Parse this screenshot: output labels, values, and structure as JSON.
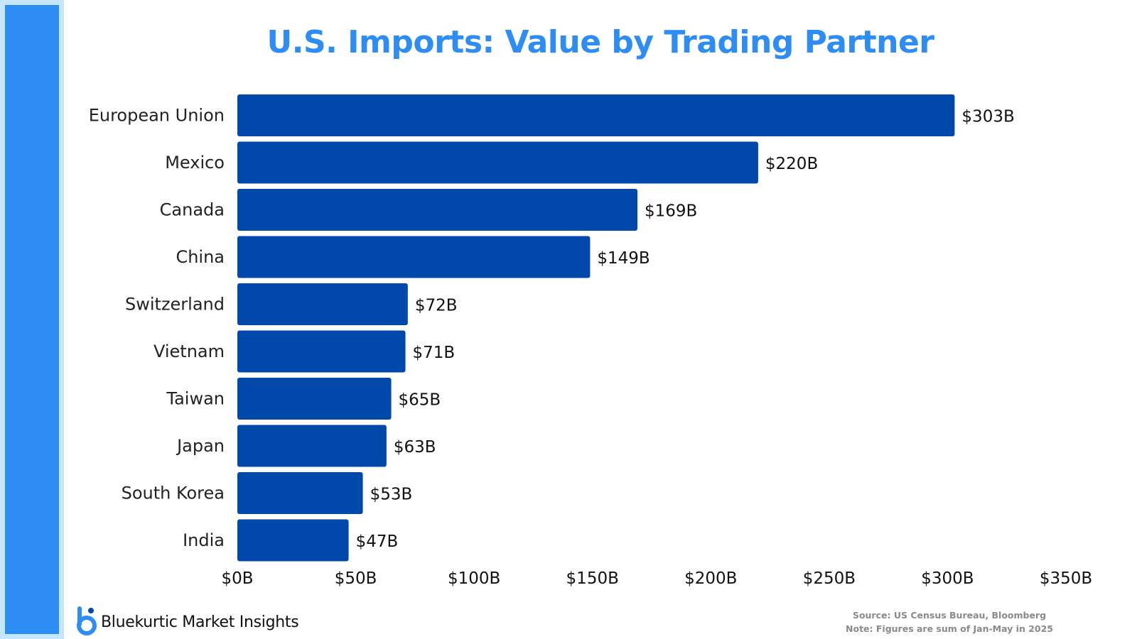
{
  "page": {
    "title": "U.S. Imports: Value by Trading Partner",
    "brand_name": "Bluekurtic Market Insights",
    "source_note": "Source: US Census Bureau, Bloomberg",
    "figures_note": "Note: Figures are sum of Jan-May in 2025",
    "logo_icon": "bluekurtic-logo-icon"
  },
  "colors": {
    "bar": "#0049ab",
    "title": "#2e8df4",
    "side_band": "#2e8df4",
    "side_band_outline": "#c5e6fb"
  },
  "chart_data": {
    "type": "bar",
    "orientation": "horizontal",
    "title": "U.S. Imports: Value by Trading Partner",
    "xlabel": "",
    "ylabel": "",
    "categories": [
      "European Union",
      "Mexico",
      "Canada",
      "China",
      "Switzerland",
      "Vietnam",
      "Taiwan",
      "Japan",
      "South Korea",
      "India"
    ],
    "values": [
      303,
      220,
      169,
      149,
      72,
      71,
      65,
      63,
      53,
      47
    ],
    "value_labels": [
      "$303B",
      "$220B",
      "$169B",
      "$149B",
      "$72B",
      "$71B",
      "$65B",
      "$63B",
      "$53B",
      "$47B"
    ],
    "xlim": [
      0,
      350
    ],
    "xticks": [
      0,
      50,
      100,
      150,
      200,
      250,
      300,
      350
    ],
    "xtick_labels": [
      "$0B",
      "$50B",
      "$100B",
      "$150B",
      "$200B",
      "$250B",
      "$300B",
      "$350B"
    ],
    "unit": "B",
    "grid": false,
    "legend": "none"
  }
}
